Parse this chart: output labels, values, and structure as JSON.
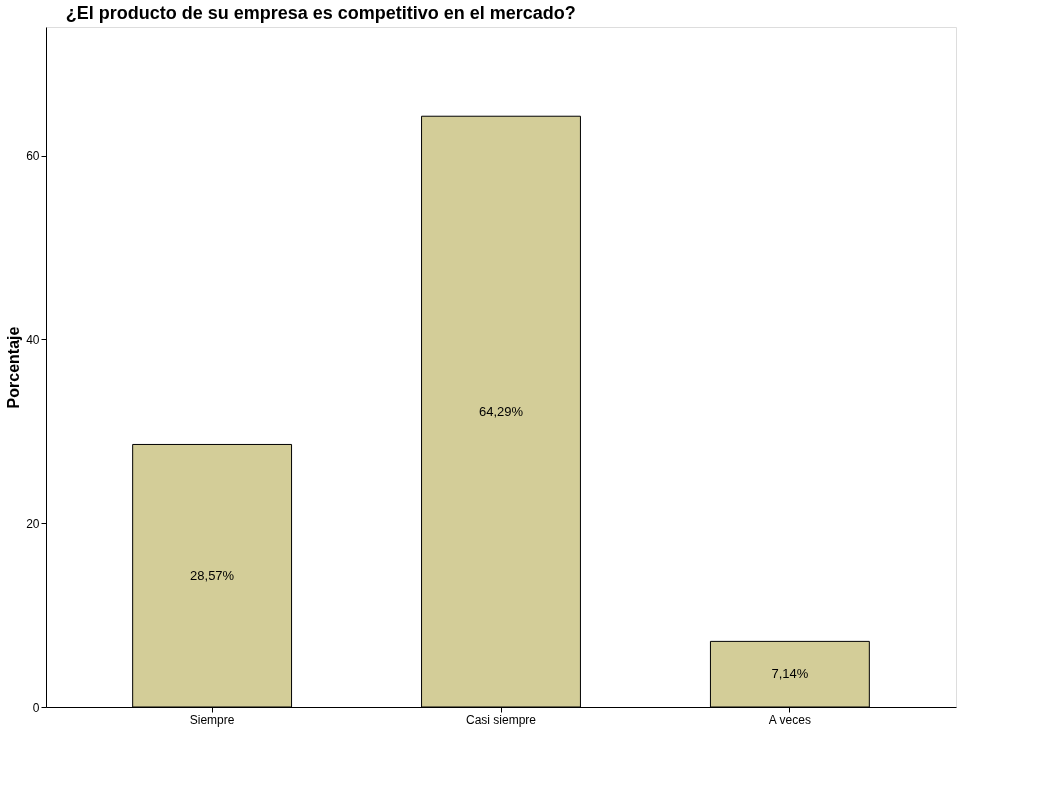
{
  "chart_data": {
    "type": "bar",
    "title": "¿El producto de su empresa es competitivo en el mercado?",
    "ylabel": "Porcentaje",
    "categories": [
      "Siempre",
      "Casi siempre",
      "A veces"
    ],
    "values": [
      28.57,
      64.29,
      7.14
    ],
    "value_labels": [
      "28,57%",
      "64,29%",
      "7,14%"
    ],
    "color": "#d3cd98",
    "ylim": [
      0,
      74
    ],
    "yticks": [
      0,
      20,
      40,
      60
    ],
    "grid": false
  }
}
